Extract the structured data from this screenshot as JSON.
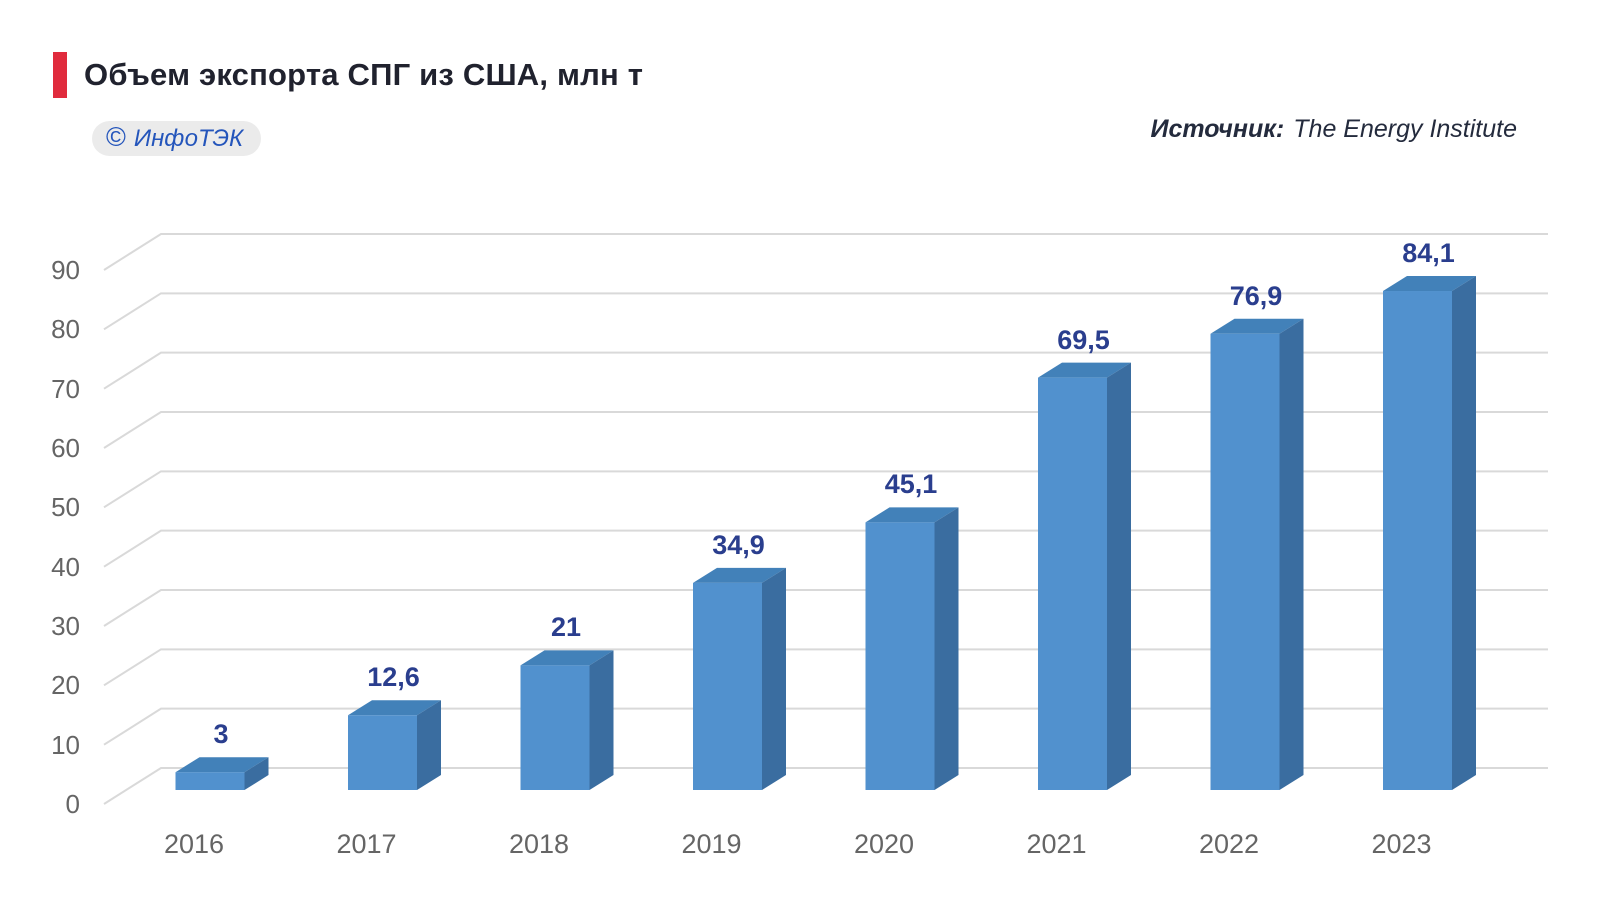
{
  "header": {
    "title": "Объем экспорта СПГ из США, млн т",
    "badge": {
      "copyright_symbol": "©",
      "label": "ИнфоТЭК"
    },
    "source_label": "Источник:",
    "source_value": "The Energy Institute"
  },
  "colors": {
    "accent_red": "#e02b3d",
    "title_color": "#20222e",
    "badge_bg": "#ebebeb",
    "badge_text": "#2455bb",
    "source_color": "#242b3d",
    "axis_text": "#656565",
    "gridline": "#d9d9d9",
    "bar_front": "#5191ce",
    "bar_top": "#4281b9",
    "bar_side": "#3a6da0",
    "value_label": "#2a3e8e"
  },
  "chart_data": {
    "type": "bar",
    "style": "3d-column",
    "title": "Объем экспорта СПГ из США, млн т",
    "categories": [
      "2016",
      "2017",
      "2018",
      "2019",
      "2020",
      "2021",
      "2022",
      "2023"
    ],
    "values": [
      3,
      12.6,
      21,
      34.9,
      45.1,
      69.5,
      76.9,
      84.1
    ],
    "value_labels": [
      "3",
      "12,6",
      "21",
      "34,9",
      "45,1",
      "69,5",
      "76,9",
      "84,1"
    ],
    "unit": "млн т",
    "ylim": [
      0,
      90
    ],
    "ytick_step": 10,
    "yticks": [
      "0",
      "10",
      "20",
      "30",
      "40",
      "50",
      "60",
      "70",
      "80",
      "90"
    ],
    "grid": true,
    "legend": "none"
  }
}
